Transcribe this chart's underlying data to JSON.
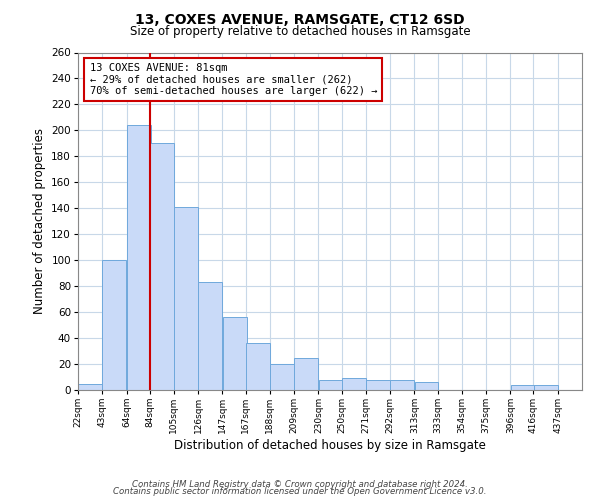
{
  "title": "13, COXES AVENUE, RAMSGATE, CT12 6SD",
  "subtitle": "Size of property relative to detached houses in Ramsgate",
  "xlabel": "Distribution of detached houses by size in Ramsgate",
  "ylabel": "Number of detached properties",
  "bar_left_edges": [
    22,
    43,
    64,
    84,
    105,
    126,
    147,
    167,
    188,
    209,
    230,
    250,
    271,
    292,
    313,
    333,
    354,
    375,
    396,
    416
  ],
  "bar_heights": [
    5,
    100,
    204,
    190,
    141,
    83,
    56,
    36,
    20,
    25,
    8,
    9,
    8,
    8,
    6,
    0,
    0,
    0,
    4,
    4
  ],
  "bin_width": 21,
  "bar_color": "#c9daf8",
  "bar_edge_color": "#6fa8dc",
  "vline_x": 84,
  "vline_color": "#cc0000",
  "annotation_text": "13 COXES AVENUE: 81sqm\n← 29% of detached houses are smaller (262)\n70% of semi-detached houses are larger (622) →",
  "annotation_box_color": "#ffffff",
  "annotation_box_edgecolor": "#cc0000",
  "ylim": [
    0,
    260
  ],
  "yticks": [
    0,
    20,
    40,
    60,
    80,
    100,
    120,
    140,
    160,
    180,
    200,
    220,
    240,
    260
  ],
  "xtick_labels": [
    "22sqm",
    "43sqm",
    "64sqm",
    "84sqm",
    "105sqm",
    "126sqm",
    "147sqm",
    "167sqm",
    "188sqm",
    "209sqm",
    "230sqm",
    "250sqm",
    "271sqm",
    "292sqm",
    "313sqm",
    "333sqm",
    "354sqm",
    "375sqm",
    "396sqm",
    "416sqm",
    "437sqm"
  ],
  "footer1": "Contains HM Land Registry data © Crown copyright and database right 2024.",
  "footer2": "Contains public sector information licensed under the Open Government Licence v3.0.",
  "background_color": "#ffffff",
  "grid_color": "#c8d8e8"
}
